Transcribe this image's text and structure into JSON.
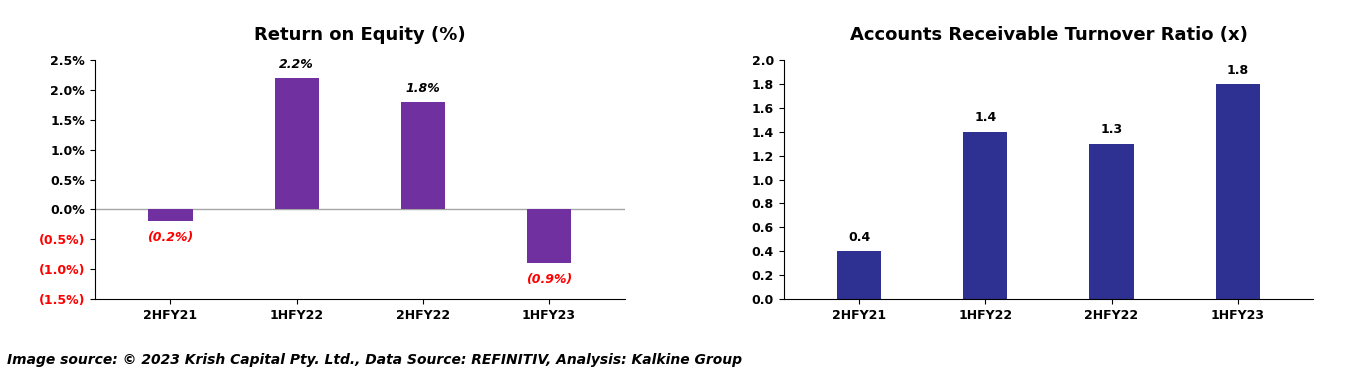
{
  "chart_data": [
    {
      "type": "bar",
      "title": "Return on Equity (%)",
      "categories": [
        "2HFY21",
        "1HFY22",
        "2HFY22",
        "1HFY23"
      ],
      "values": [
        -0.2,
        2.2,
        1.8,
        -0.9
      ],
      "value_labels": [
        "(0.2%)",
        "2.2%",
        "1.8%",
        "(0.9%)"
      ],
      "data_labels": true,
      "color": "#7030a0",
      "ylim": [
        -1.5,
        2.5
      ],
      "yticks": [
        {
          "value": -1.5,
          "label": "(1.5%)"
        },
        {
          "value": -1.0,
          "label": "(1.0%)"
        },
        {
          "value": -0.5,
          "label": "(0.5%)"
        },
        {
          "value": 0.0,
          "label": "0.0%"
        },
        {
          "value": 0.5,
          "label": "0.5%"
        },
        {
          "value": 1.0,
          "label": "1.0%"
        },
        {
          "value": 1.5,
          "label": "1.5%"
        },
        {
          "value": 2.0,
          "label": "2.0%"
        },
        {
          "value": 2.5,
          "label": "2.5%"
        }
      ],
      "grid": false
    },
    {
      "type": "bar",
      "title": "Accounts Receivable Turnover Ratio (x)",
      "categories": [
        "2HFY21",
        "1HFY22",
        "2HFY22",
        "1HFY23"
      ],
      "values": [
        0.4,
        1.4,
        1.3,
        1.8
      ],
      "data_labels": true,
      "color": "#2e3192",
      "ylim": [
        0.0,
        2.0
      ],
      "yticks": [
        {
          "value": 0.0,
          "label": "0.0"
        },
        {
          "value": 0.2,
          "label": "0.2"
        },
        {
          "value": 0.4,
          "label": "0.4"
        },
        {
          "value": 0.6,
          "label": "0.6"
        },
        {
          "value": 0.8,
          "label": "0.8"
        },
        {
          "value": 1.0,
          "label": "1.0"
        },
        {
          "value": 1.2,
          "label": "1.2"
        },
        {
          "value": 1.4,
          "label": "1.4"
        },
        {
          "value": 1.6,
          "label": "1.6"
        },
        {
          "value": 1.8,
          "label": "1.8"
        },
        {
          "value": 2.0,
          "label": "2.0"
        }
      ],
      "grid": false
    }
  ],
  "source": "Image source: © 2023 Krish Capital Pty. Ltd., Data Source: REFINITIV, Analysis: Kalkine Group"
}
